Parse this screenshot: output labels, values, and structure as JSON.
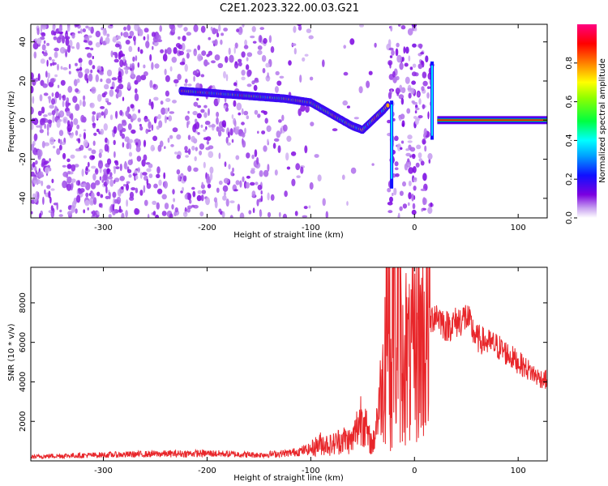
{
  "title": "C2E1.2023.322.00.03.G21",
  "chart_data": [
    {
      "type": "heatmap",
      "xlabel": "Height of straight line (km)",
      "ylabel": "Frequency (Hz)",
      "xlim": [
        -370,
        128
      ],
      "ylim": [
        -50,
        49
      ],
      "xticks": [
        -300,
        -200,
        -100,
        0,
        100
      ],
      "yticks": [
        -40,
        -20,
        0,
        20,
        40
      ],
      "colorbar": {
        "label": "Normalized spectral amplitude",
        "range": [
          0.0,
          1.0
        ],
        "ticks": [
          0.0,
          0.2,
          0.4,
          0.6,
          0.8
        ],
        "colormap": [
          "#ffffff",
          "#c8a2f0",
          "#7b00e0",
          "#1010ff",
          "#00c8ff",
          "#00ff40",
          "#ffff00",
          "#ff8000",
          "#ff0000",
          "#ff0080"
        ]
      },
      "ridge": {
        "x": [
          -225,
          -200,
          -175,
          -150,
          -125,
          -100,
          -90,
          -80,
          -70,
          -60,
          -50,
          -40,
          -30,
          -25
        ],
        "y": [
          15,
          14,
          13,
          12,
          11,
          9,
          6,
          3,
          0,
          -3,
          -5,
          0,
          5,
          8
        ]
      },
      "carrier": {
        "x_start": 22,
        "x_end": 128,
        "y": 0
      },
      "bursts_x": [
        -22,
        17
      ]
    },
    {
      "type": "line",
      "xlabel": "Height of straight line (km)",
      "ylabel": "SNR (10 * v/v)",
      "xlim": [
        -370,
        128
      ],
      "ylim": [
        0,
        9800
      ],
      "xticks": [
        -300,
        -200,
        -100,
        0,
        100
      ],
      "yticks": [
        2000,
        4000,
        6000,
        8000
      ],
      "series": [
        {
          "color": "#e8262a",
          "x": [
            -370,
            -350,
            -300,
            -250,
            -200,
            -150,
            -120,
            -100,
            -90,
            -80,
            -70,
            -60,
            -50,
            -45,
            -40,
            -35,
            -30,
            -28,
            -26,
            -24,
            -22,
            -20,
            -18,
            -15,
            -12,
            -10,
            -5,
            0,
            5,
            10,
            15,
            20,
            25,
            30,
            40,
            50,
            60,
            70,
            80,
            90,
            100,
            110,
            120,
            128
          ],
          "y": [
            200,
            250,
            300,
            350,
            380,
            300,
            400,
            600,
            900,
            800,
            1100,
            1000,
            2500,
            1200,
            800,
            2600,
            4200,
            7500,
            9800,
            6000,
            3500,
            9500,
            5000,
            8500,
            4000,
            6000,
            4800,
            5500,
            6300,
            6000,
            7000,
            7500,
            7200,
            6800,
            7000,
            7300,
            6200,
            6000,
            5800,
            5400,
            5000,
            4600,
            4200,
            4100
          ]
        }
      ]
    }
  ]
}
